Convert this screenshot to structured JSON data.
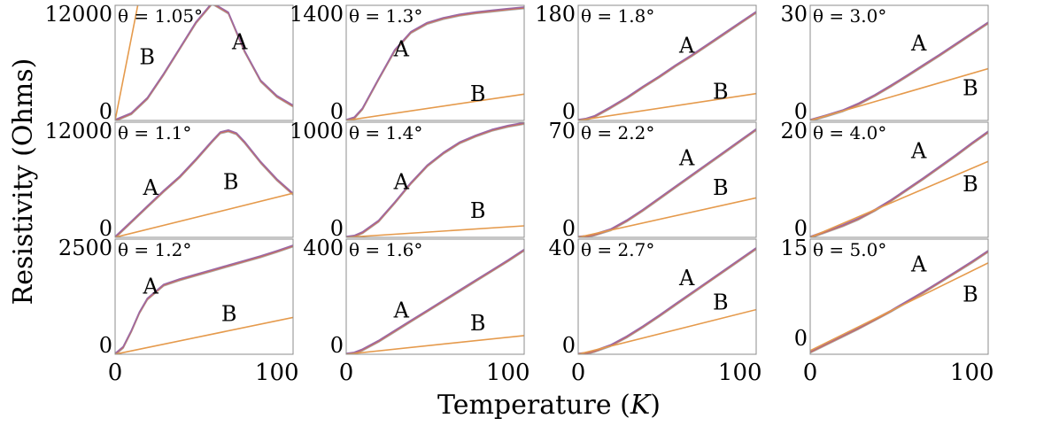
{
  "chart_data": {
    "type": "line",
    "xlabel": "Temperature (K)",
    "ylabel": "Resistivity (Ohms)",
    "xlim": [
      0,
      110
    ],
    "xticks": [
      0,
      100
    ],
    "grid": false,
    "series_colors": {
      "A": [
        "#9b6aa6",
        "#d46a4c",
        "#a9a9a9"
      ],
      "B": "#e59a4c"
    },
    "panels": [
      {
        "id": "p1",
        "title": "θ = 1.05°",
        "ylim": [
          0,
          12000
        ],
        "ytick_labels": [
          "12000",
          "0"
        ],
        "labels": [
          "A",
          "B"
        ],
        "series": [
          {
            "name": "A",
            "x": [
              0,
              10,
              20,
              30,
              40,
              50,
              60,
              70,
              80,
              90,
              100,
              110
            ],
            "y": [
              0,
              700,
              2300,
              4800,
              7500,
              10200,
              12200,
              11200,
              7200,
              4100,
              2500,
              1500
            ]
          },
          {
            "name": "B",
            "x": [
              0,
              14
            ],
            "y": [
              0,
              12000
            ]
          }
        ]
      },
      {
        "id": "p2",
        "title": "θ = 1.3°",
        "ylim": [
          0,
          1400
        ],
        "ytick_labels": [
          "1400",
          "0"
        ],
        "labels": [
          "A",
          "B"
        ],
        "series": [
          {
            "name": "A",
            "x": [
              0,
              5,
              10,
              20,
              30,
              40,
              50,
              60,
              70,
              80,
              90,
              100,
              110
            ],
            "y": [
              0,
              30,
              140,
              500,
              850,
              1070,
              1180,
              1240,
              1280,
              1310,
              1330,
              1350,
              1370
            ]
          },
          {
            "name": "B",
            "x": [
              0,
              110
            ],
            "y": [
              0,
              320
            ]
          }
        ]
      },
      {
        "id": "p3",
        "title": "θ = 1.8°",
        "ylim": [
          0,
          180
        ],
        "ytick_labels": [
          "180",
          "0"
        ],
        "labels": [
          "A",
          "B"
        ],
        "series": [
          {
            "name": "A",
            "x": [
              0,
              5,
              10,
              20,
              30,
              40,
              50,
              60,
              70,
              80,
              90,
              100,
              110
            ],
            "y": [
              0,
              2,
              6,
              20,
              35,
              52,
              68,
              85,
              101,
              118,
              135,
              152,
              169
            ]
          },
          {
            "name": "B",
            "x": [
              0,
              110
            ],
            "y": [
              0,
              42
            ]
          }
        ]
      },
      {
        "id": "p4",
        "title": "θ = 3.0°",
        "ylim": [
          0,
          30
        ],
        "ytick_labels": [
          "30",
          "0"
        ],
        "labels": [
          "A",
          "B"
        ],
        "series": [
          {
            "name": "A",
            "x": [
              0,
              10,
              20,
              30,
              40,
              50,
              60,
              70,
              80,
              90,
              100,
              110
            ],
            "y": [
              0,
              1.2,
              2.5,
              4.3,
              6.5,
              9.0,
              11.6,
              14.3,
              17.0,
              19.8,
              22.6,
              25.4
            ]
          },
          {
            "name": "B",
            "x": [
              0,
              110
            ],
            "y": [
              0,
              13.5
            ]
          }
        ]
      },
      {
        "id": "p5",
        "title": "θ = 1.1°",
        "ylim": [
          0,
          12000
        ],
        "ytick_labels": [
          "12000",
          "0"
        ],
        "labels": [
          "A",
          "B"
        ],
        "series": [
          {
            "name": "A",
            "x": [
              0,
              10,
              20,
              30,
              40,
              50,
              60,
              65,
              70,
              75,
              80,
              90,
              100,
              110
            ],
            "y": [
              0,
              1600,
              3200,
              4800,
              6300,
              8100,
              10000,
              10900,
              11100,
              10800,
              9900,
              7800,
              6000,
              4500
            ]
          },
          {
            "name": "B",
            "x": [
              0,
              110
            ],
            "y": [
              0,
              4600
            ]
          }
        ]
      },
      {
        "id": "p6",
        "title": "θ = 1.4°",
        "ylim": [
          0,
          1000
        ],
        "ytick_labels": [
          "1000",
          "0"
        ],
        "labels": [
          "A",
          "B"
        ],
        "series": [
          {
            "name": "A",
            "x": [
              0,
              5,
              10,
              20,
              30,
              40,
              50,
              60,
              70,
              80,
              90,
              100,
              110
            ],
            "y": [
              0,
              10,
              40,
              140,
              300,
              470,
              620,
              730,
              820,
              880,
              930,
              965,
              990
            ]
          },
          {
            "name": "B",
            "x": [
              0,
              110
            ],
            "y": [
              0,
              100
            ]
          }
        ]
      },
      {
        "id": "p7",
        "title": "θ = 2.2°",
        "ylim": [
          0,
          70
        ],
        "ytick_labels": [
          "70",
          "0"
        ],
        "labels": [
          "A",
          "B"
        ],
        "series": [
          {
            "name": "A",
            "x": [
              0,
              5,
              10,
              20,
              30,
              40,
              50,
              60,
              70,
              80,
              90,
              100,
              110
            ],
            "y": [
              0,
              0.5,
              1.5,
              4.5,
              10,
              16.5,
              23.5,
              30.5,
              37.5,
              44.5,
              51.5,
              58.5,
              65.5
            ]
          },
          {
            "name": "B",
            "x": [
              0,
              110
            ],
            "y": [
              0,
              24
            ]
          }
        ]
      },
      {
        "id": "p8",
        "title": "θ = 4.0°",
        "ylim": [
          0,
          20
        ],
        "ytick_labels": [
          "20",
          "0"
        ],
        "labels": [
          "A",
          "B"
        ],
        "series": [
          {
            "name": "A",
            "x": [
              0,
              10,
              20,
              30,
              40,
              50,
              60,
              70,
              80,
              90,
              100,
              110
            ],
            "y": [
              0,
              1.0,
              2.0,
              3.2,
              4.7,
              6.4,
              8.3,
              10.2,
              12.2,
              14.2,
              16.3,
              18.3
            ]
          },
          {
            "name": "B",
            "x": [
              0,
              110
            ],
            "y": [
              0,
              13.2
            ]
          }
        ]
      },
      {
        "id": "p9",
        "title": "θ = 1.2°",
        "ylim": [
          0,
          2500
        ],
        "ytick_labels": [
          "2500",
          "0"
        ],
        "labels": [
          "A",
          "B"
        ],
        "series": [
          {
            "name": "A",
            "x": [
              0,
              5,
              10,
              15,
              20,
              30,
              40,
              50,
              60,
              70,
              80,
              90,
              100,
              110
            ],
            "y": [
              0,
              150,
              500,
              900,
              1200,
              1500,
              1620,
              1720,
              1820,
              1920,
              2020,
              2120,
              2230,
              2350
            ]
          },
          {
            "name": "B",
            "x": [
              0,
              110
            ],
            "y": [
              0,
              800
            ]
          }
        ]
      },
      {
        "id": "p10",
        "title": "θ = 1.6°",
        "ylim": [
          0,
          400
        ],
        "ytick_labels": [
          "400",
          "0"
        ],
        "labels": [
          "A",
          "B"
        ],
        "series": [
          {
            "name": "A",
            "x": [
              0,
              5,
              10,
              20,
              30,
              40,
              50,
              60,
              70,
              80,
              90,
              100,
              110
            ],
            "y": [
              0,
              4,
              15,
              45,
              80,
              115,
              150,
              185,
              220,
              255,
              290,
              325,
              362
            ]
          },
          {
            "name": "B",
            "x": [
              0,
              110
            ],
            "y": [
              0,
              65
            ]
          }
        ]
      },
      {
        "id": "p11",
        "title": "θ = 2.7°",
        "ylim": [
          0,
          40
        ],
        "ytick_labels": [
          "40",
          "0"
        ],
        "labels": [
          "A",
          "B"
        ],
        "series": [
          {
            "name": "A",
            "x": [
              0,
              5,
              10,
              20,
              30,
              40,
              50,
              60,
              70,
              80,
              90,
              100,
              110
            ],
            "y": [
              0,
              0.3,
              1,
              3,
              6,
              9.5,
              13.3,
              17.2,
              21.1,
              25,
              28.9,
              32.8,
              36.7
            ]
          },
          {
            "name": "B",
            "x": [
              0,
              110
            ],
            "y": [
              0,
              15.5
            ]
          }
        ]
      },
      {
        "id": "p12",
        "title": "θ = 5.0°",
        "ylim": [
          -1,
          15
        ],
        "ytick_labels": [
          "15",
          "0"
        ],
        "labels": [
          "A",
          "B"
        ],
        "series": [
          {
            "name": "A",
            "x": [
              0,
              10,
              20,
              30,
              40,
              50,
              60,
              70,
              80,
              90,
              100,
              110
            ],
            "y": [
              -0.7,
              0.4,
              1.5,
              2.6,
              3.8,
              5.0,
              6.3,
              7.6,
              9.0,
              10.4,
              11.8,
              13.3
            ]
          },
          {
            "name": "B",
            "x": [
              0,
              110
            ],
            "y": [
              -0.5,
              11.7
            ]
          }
        ]
      }
    ]
  }
}
